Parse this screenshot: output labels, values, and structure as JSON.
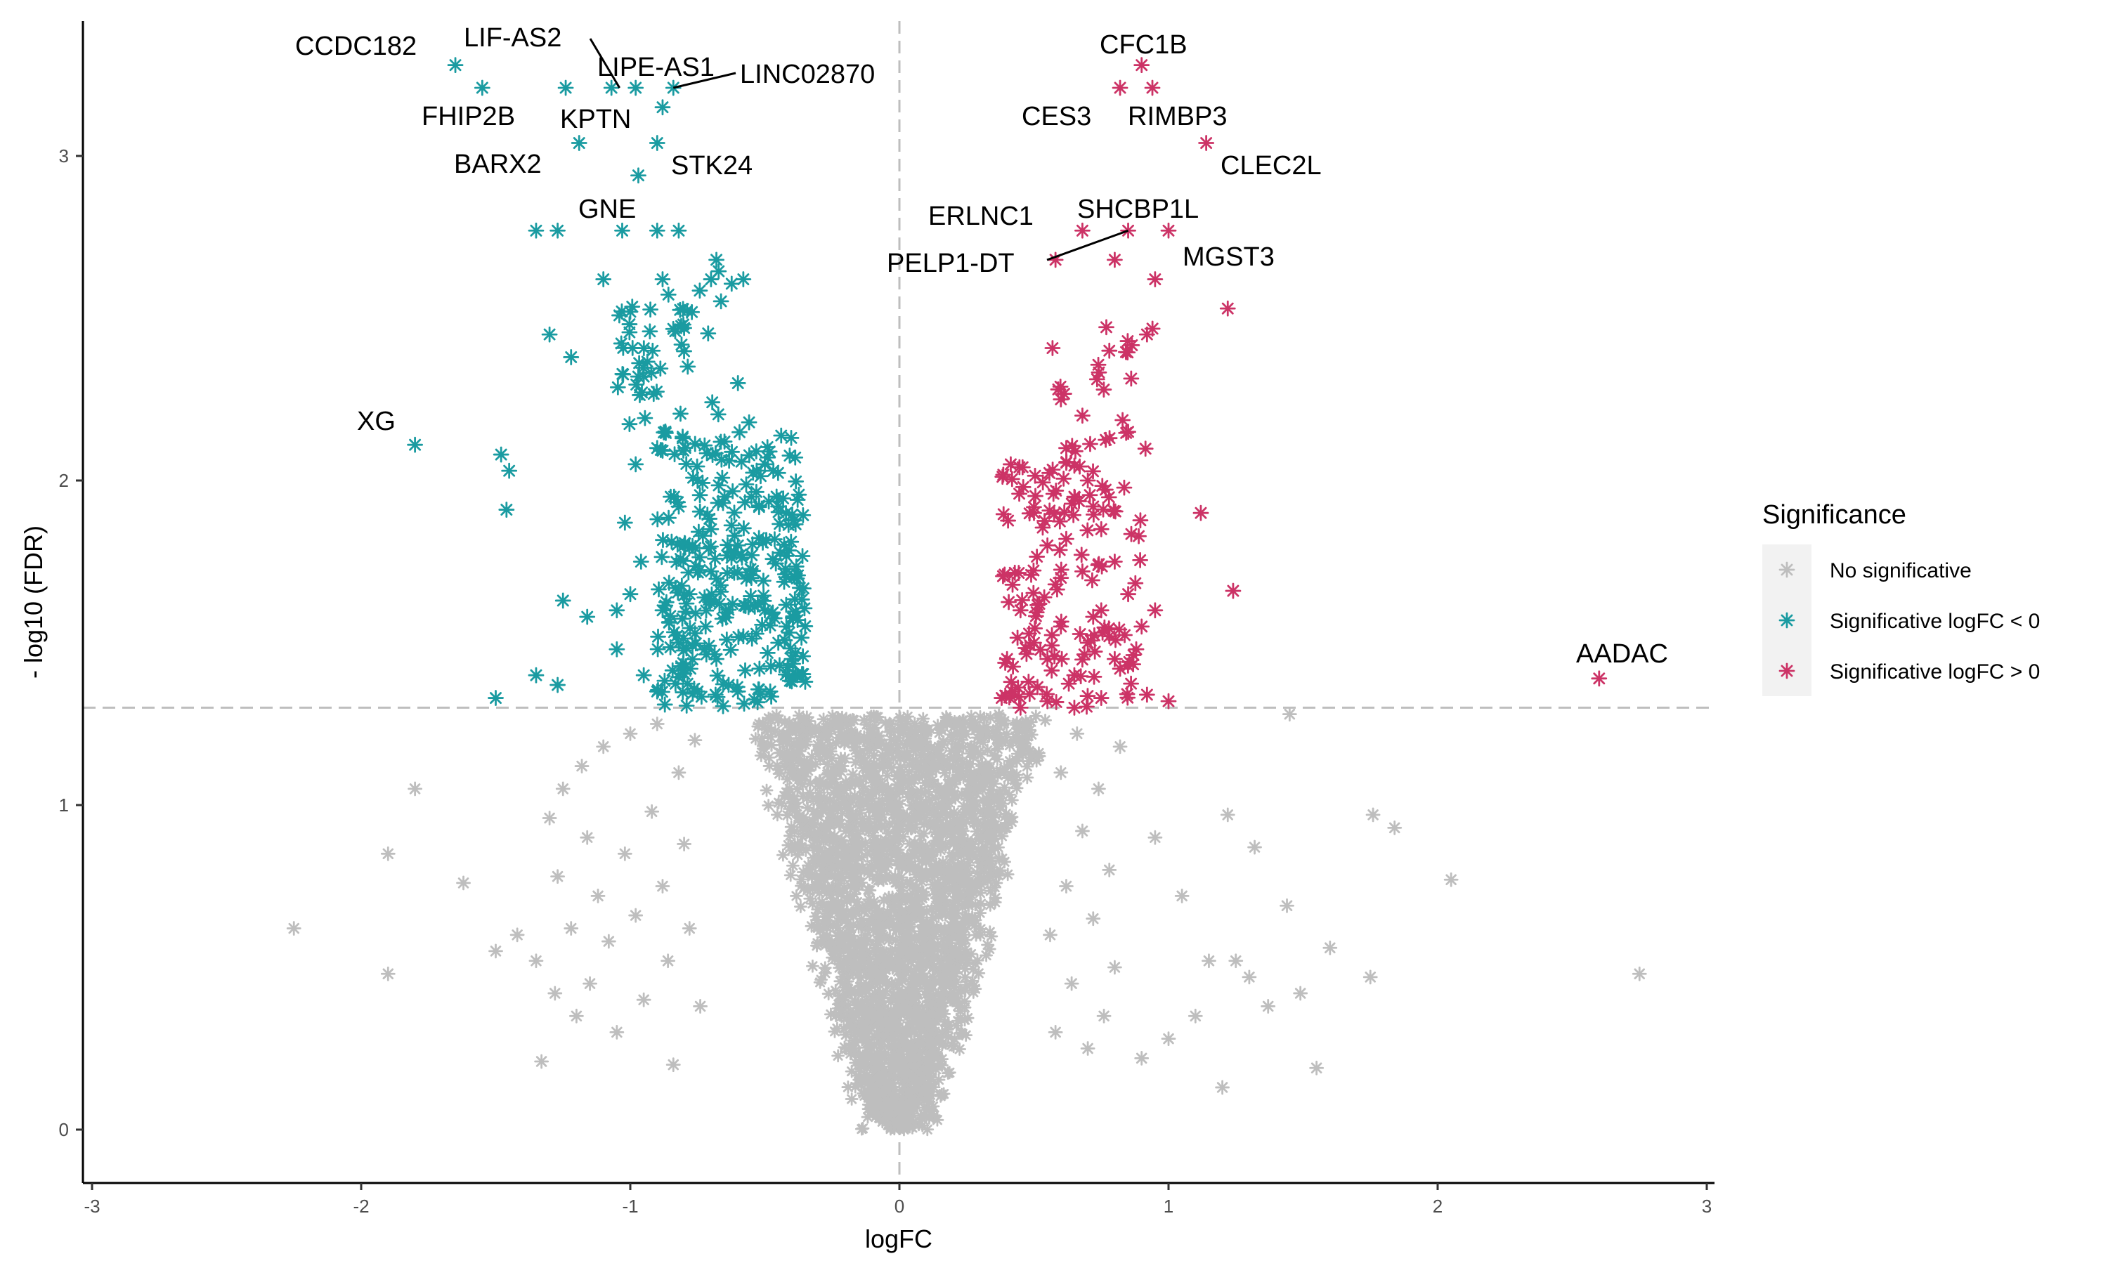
{
  "chart_data": {
    "type": "scatter",
    "title": "",
    "xlabel": "logFC",
    "ylabel": "- log10 (FDR)",
    "xlim": [
      -3,
      3
    ],
    "ylim": [
      0,
      3.4
    ],
    "x_ticks": [
      -3,
      -2,
      -1,
      0,
      1,
      2,
      3
    ],
    "y_ticks": [
      0,
      1,
      2,
      3
    ],
    "thresholds": {
      "fdr_line_y": 1.3,
      "logfc_line_x": 0
    },
    "grid": false,
    "legend": {
      "title": "Significance",
      "placement": "right",
      "entries": [
        {
          "label": "No significative",
          "color": "#BEBEBE"
        },
        {
          "label": "Significative logFC < 0",
          "color": "#1A9BA1"
        },
        {
          "label": "Significative logFC > 0",
          "color": "#CC3366"
        }
      ]
    },
    "marker": "asterisk",
    "series": [
      {
        "name": "No significative",
        "color": "#BEBEBE",
        "points": [
          [
            -2.25,
            0.62
          ],
          [
            -1.9,
            0.85
          ],
          [
            -1.9,
            0.48
          ],
          [
            -1.8,
            1.05
          ],
          [
            -1.62,
            0.76
          ],
          [
            -1.5,
            0.55
          ],
          [
            -1.42,
            0.6
          ],
          [
            -1.35,
            0.52
          ],
          [
            -1.33,
            0.21
          ],
          [
            -1.3,
            0.96
          ],
          [
            -1.28,
            0.42
          ],
          [
            -1.27,
            0.78
          ],
          [
            -1.25,
            1.05
          ],
          [
            -1.22,
            0.62
          ],
          [
            -1.2,
            0.35
          ],
          [
            -1.18,
            1.12
          ],
          [
            -1.16,
            0.9
          ],
          [
            -1.15,
            0.45
          ],
          [
            -1.12,
            0.72
          ],
          [
            -1.1,
            1.18
          ],
          [
            -1.08,
            0.58
          ],
          [
            -1.05,
            0.3
          ],
          [
            -1.02,
            0.85
          ],
          [
            -1.0,
            1.22
          ],
          [
            -0.98,
            0.66
          ],
          [
            -0.95,
            0.4
          ],
          [
            -0.92,
            0.98
          ],
          [
            -0.9,
            1.25
          ],
          [
            -0.88,
            0.75
          ],
          [
            -0.86,
            0.52
          ],
          [
            -0.84,
            0.2
          ],
          [
            -0.82,
            1.1
          ],
          [
            -0.8,
            0.88
          ],
          [
            -0.78,
            0.62
          ],
          [
            -0.76,
            1.2
          ],
          [
            -0.74,
            0.38
          ],
          [
            1.45,
            1.28
          ],
          [
            1.2,
            0.13
          ],
          [
            1.15,
            0.52
          ],
          [
            1.22,
            0.97
          ],
          [
            1.25,
            0.52
          ],
          [
            1.3,
            0.47
          ],
          [
            1.32,
            0.87
          ],
          [
            1.37,
            0.38
          ],
          [
            1.44,
            0.69
          ],
          [
            1.49,
            0.42
          ],
          [
            1.55,
            0.19
          ],
          [
            1.6,
            0.56
          ],
          [
            1.75,
            0.47
          ],
          [
            1.76,
            0.97
          ],
          [
            1.84,
            0.93
          ],
          [
            2.05,
            0.77
          ],
          [
            2.75,
            0.48
          ],
          [
            1.05,
            0.72
          ],
          [
            1.1,
            0.35
          ],
          [
            1.0,
            0.28
          ],
          [
            0.95,
            0.9
          ],
          [
            0.9,
            0.22
          ],
          [
            0.82,
            1.18
          ],
          [
            0.8,
            0.5
          ],
          [
            0.78,
            0.8
          ],
          [
            0.76,
            0.35
          ],
          [
            0.74,
            1.05
          ],
          [
            0.72,
            0.65
          ],
          [
            0.7,
            0.25
          ],
          [
            0.68,
            0.92
          ],
          [
            0.66,
            1.22
          ],
          [
            0.64,
            0.45
          ],
          [
            0.62,
            0.75
          ],
          [
            0.6,
            1.1
          ],
          [
            0.58,
            0.3
          ],
          [
            0.56,
            0.6
          ],
          [
            -0.02,
            0.02
          ],
          [
            0.02,
            0.03
          ]
        ]
      },
      {
        "name": "Significative logFC < 0",
        "color": "#1A9BA1",
        "points": [
          [
            -1.65,
            3.28
          ],
          [
            -1.55,
            3.21
          ],
          [
            -1.24,
            3.21
          ],
          [
            -1.07,
            3.21
          ],
          [
            -0.98,
            3.21
          ],
          [
            -0.88,
            3.15
          ],
          [
            -0.84,
            3.21
          ],
          [
            -1.19,
            3.04
          ],
          [
            -0.9,
            3.04
          ],
          [
            -0.97,
            2.94
          ],
          [
            -1.35,
            2.77
          ],
          [
            -1.27,
            2.77
          ],
          [
            -1.03,
            2.77
          ],
          [
            -0.9,
            2.77
          ],
          [
            -0.82,
            2.77
          ],
          [
            -1.8,
            2.11
          ],
          [
            -1.48,
            2.08
          ],
          [
            -1.45,
            2.03
          ],
          [
            -1.46,
            1.91
          ],
          [
            -1.3,
            2.45
          ],
          [
            -1.22,
            2.38
          ],
          [
            -1.1,
            2.62
          ],
          [
            -1.0,
            2.52
          ],
          [
            -0.95,
            2.32
          ],
          [
            -0.88,
            2.62
          ],
          [
            -0.8,
            2.47
          ],
          [
            -0.7,
            2.62
          ],
          [
            -0.68,
            2.68
          ],
          [
            -0.58,
            2.62
          ],
          [
            -0.6,
            2.3
          ],
          [
            -1.25,
            1.63
          ],
          [
            -1.16,
            1.58
          ],
          [
            -1.05,
            1.6
          ],
          [
            -0.96,
            1.75
          ],
          [
            -1.5,
            1.33
          ],
          [
            -1.35,
            1.4
          ],
          [
            -1.27,
            1.37
          ],
          [
            -1.05,
            1.48
          ],
          [
            -1.0,
            1.65
          ],
          [
            -0.95,
            1.4
          ],
          [
            -1.02,
            1.87
          ],
          [
            -0.98,
            2.05
          ],
          [
            -0.9,
            2.1
          ],
          [
            -0.85,
            1.95
          ],
          [
            -0.8,
            1.8
          ],
          [
            -0.75,
            2.0
          ],
          [
            -0.7,
            1.85
          ],
          [
            -0.65,
            1.95
          ],
          [
            -0.6,
            1.8
          ],
          [
            -0.55,
            1.7
          ],
          [
            -0.5,
            1.6
          ],
          [
            -0.45,
            1.5
          ],
          [
            -0.4,
            1.45
          ],
          [
            -0.35,
            1.38
          ],
          [
            -0.88,
            1.6
          ],
          [
            -0.82,
            1.5
          ],
          [
            -0.78,
            1.65
          ],
          [
            -0.72,
            1.55
          ],
          [
            -0.68,
            1.45
          ],
          [
            -0.62,
            1.62
          ],
          [
            -0.58,
            1.52
          ],
          [
            -0.52,
            1.42
          ],
          [
            -0.48,
            1.35
          ],
          [
            -0.42,
            1.55
          ],
          [
            -0.38,
            1.4
          ],
          [
            -0.9,
            1.35
          ],
          [
            -0.75,
            1.35
          ],
          [
            -0.6,
            1.35
          ],
          [
            -0.55,
            1.95
          ],
          [
            -0.5,
            2.05
          ],
          [
            -0.45,
            1.92
          ],
          [
            -0.65,
            2.12
          ],
          [
            -0.7,
            1.72
          ],
          [
            -0.8,
            1.42
          ]
        ]
      },
      {
        "name": "Significative logFC > 0",
        "color": "#CC3366",
        "points": [
          [
            0.9,
            3.28
          ],
          [
            0.82,
            3.21
          ],
          [
            0.94,
            3.21
          ],
          [
            1.14,
            3.04
          ],
          [
            0.58,
            2.68
          ],
          [
            0.68,
            2.77
          ],
          [
            0.85,
            2.77
          ],
          [
            1.0,
            2.77
          ],
          [
            1.22,
            2.53
          ],
          [
            0.95,
            2.62
          ],
          [
            0.8,
            2.68
          ],
          [
            0.78,
            2.4
          ],
          [
            0.92,
            2.45
          ],
          [
            0.6,
            2.25
          ],
          [
            2.6,
            1.39
          ],
          [
            1.12,
            1.9
          ],
          [
            1.24,
            1.66
          ],
          [
            0.92,
            1.34
          ],
          [
            1.0,
            1.32
          ],
          [
            0.5,
            1.9
          ],
          [
            0.55,
            1.8
          ],
          [
            0.6,
            1.7
          ],
          [
            0.65,
            1.95
          ],
          [
            0.7,
            2.0
          ],
          [
            0.75,
            1.85
          ],
          [
            0.8,
            1.75
          ],
          [
            0.85,
            1.65
          ],
          [
            0.9,
            1.55
          ],
          [
            0.45,
            1.6
          ],
          [
            0.5,
            1.5
          ],
          [
            0.55,
            1.45
          ],
          [
            0.6,
            1.55
          ],
          [
            0.65,
            1.4
          ],
          [
            0.7,
            1.5
          ],
          [
            0.75,
            1.6
          ],
          [
            0.8,
            1.45
          ],
          [
            0.4,
            1.45
          ],
          [
            0.42,
            1.35
          ],
          [
            0.48,
            1.38
          ],
          [
            0.52,
            1.62
          ],
          [
            0.58,
            1.68
          ],
          [
            0.62,
            1.82
          ],
          [
            0.68,
            1.72
          ],
          [
            0.72,
            1.58
          ],
          [
            0.78,
            1.52
          ],
          [
            0.82,
            1.42
          ],
          [
            0.88,
            1.48
          ],
          [
            0.95,
            1.6
          ],
          [
            0.38,
            1.33
          ],
          [
            0.45,
            1.3
          ],
          [
            0.55,
            1.32
          ],
          [
            0.65,
            1.3
          ],
          [
            0.75,
            1.33
          ],
          [
            0.62,
            2.1
          ],
          [
            0.68,
            2.2
          ],
          [
            0.72,
            1.92
          ],
          [
            0.85,
            2.15
          ]
        ]
      }
    ],
    "annotations": [
      {
        "text": "CCDC182",
        "x": -1.65,
        "y": 3.28
      },
      {
        "text": "LIF-AS2",
        "x": -1.04,
        "y": 3.21
      },
      {
        "text": "LIPE-AS1",
        "x": -0.88,
        "y": 3.15
      },
      {
        "text": "LINC02870",
        "x": -0.84,
        "y": 3.21
      },
      {
        "text": "FHIP2B",
        "x": -1.55,
        "y": 3.21
      },
      {
        "text": "KPTN",
        "x": -0.98,
        "y": 3.21
      },
      {
        "text": "BARX2",
        "x": -1.19,
        "y": 3.04
      },
      {
        "text": "STK24",
        "x": -0.9,
        "y": 3.04
      },
      {
        "text": "GNE",
        "x": -0.97,
        "y": 2.94
      },
      {
        "text": "XG",
        "x": -1.8,
        "y": 2.11
      },
      {
        "text": "CFC1B",
        "x": 0.9,
        "y": 3.28
      },
      {
        "text": "CES3",
        "x": 0.82,
        "y": 3.21
      },
      {
        "text": "RIMBP3",
        "x": 0.94,
        "y": 3.21
      },
      {
        "text": "CLEC2L",
        "x": 1.14,
        "y": 3.04
      },
      {
        "text": "ERLNC1",
        "x": 0.68,
        "y": 2.77
      },
      {
        "text": "SHCBP1L",
        "x": 0.85,
        "y": 2.77
      },
      {
        "text": "PELP1-DT",
        "x": 0.58,
        "y": 2.68
      },
      {
        "text": "MGST3",
        "x": 1.0,
        "y": 2.77
      },
      {
        "text": "AADAC",
        "x": 2.6,
        "y": 1.39
      }
    ]
  }
}
